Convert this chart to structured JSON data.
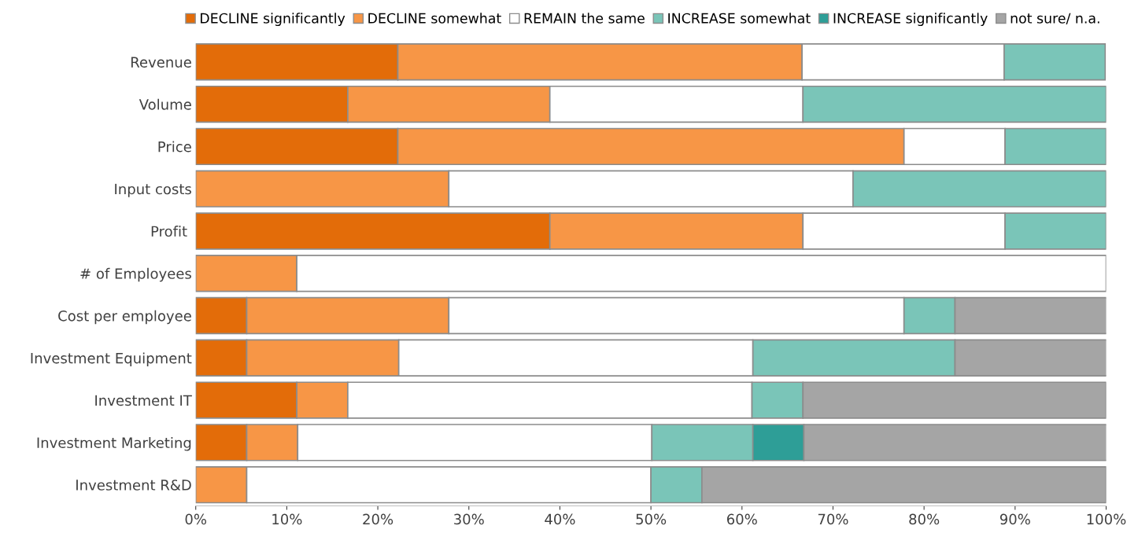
{
  "chart_data": {
    "type": "bar",
    "orientation": "horizontal",
    "stacked": true,
    "legend": "top right",
    "grid": false,
    "categories": [
      "Revenue",
      "Volume",
      "Price",
      "Input costs",
      "Profit ",
      "# of Employees",
      "Cost per employee",
      "Investment Equipment",
      "Investment IT",
      "Investment Marketing",
      "Investment R&D"
    ],
    "series": [
      {
        "name": "DECLINE significantly",
        "color": "#e36c09",
        "values": [
          22.2,
          16.7,
          22.2,
          0,
          38.9,
          0,
          5.6,
          5.6,
          11.1,
          5.6,
          0
        ]
      },
      {
        "name": "DECLINE somewhat",
        "color": "#f79646",
        "values": [
          44.4,
          22.2,
          55.6,
          27.8,
          27.8,
          11.1,
          22.2,
          16.7,
          5.6,
          5.6,
          5.6
        ]
      },
      {
        "name": "REMAIN the same",
        "color": "#ffffff",
        "values": [
          22.2,
          27.8,
          11.1,
          44.4,
          22.2,
          88.9,
          50.0,
          38.9,
          44.4,
          38.9,
          44.4
        ]
      },
      {
        "name": "INCREASE somewhat",
        "color": "#7ac5b8",
        "values": [
          11.1,
          33.3,
          11.1,
          27.8,
          11.1,
          0,
          5.6,
          22.2,
          5.6,
          11.1,
          5.6
        ]
      },
      {
        "name": "INCREASE significantly",
        "color": "#2e9e97",
        "values": [
          0,
          0,
          0,
          0,
          0,
          0,
          0,
          0,
          0,
          5.6,
          0
        ]
      },
      {
        "name": "not sure/ n.a.",
        "color": "#a5a5a5",
        "values": [
          0,
          0,
          0,
          0,
          0,
          0,
          16.7,
          16.7,
          33.3,
          33.3,
          44.4
        ]
      }
    ],
    "xlim": [
      0,
      100
    ],
    "xticks": [
      {
        "value": 0,
        "label": "0%"
      },
      {
        "value": 10,
        "label": "10%"
      },
      {
        "value": 20,
        "label": "20%"
      },
      {
        "value": 30,
        "label": "30%"
      },
      {
        "value": 40,
        "label": "40%"
      },
      {
        "value": 50,
        "label": "50%"
      },
      {
        "value": 60,
        "label": "60%"
      },
      {
        "value": 70,
        "label": "70%"
      },
      {
        "value": 80,
        "label": "80%"
      },
      {
        "value": 90,
        "label": "90%"
      },
      {
        "value": 100,
        "label": "100%"
      }
    ]
  }
}
